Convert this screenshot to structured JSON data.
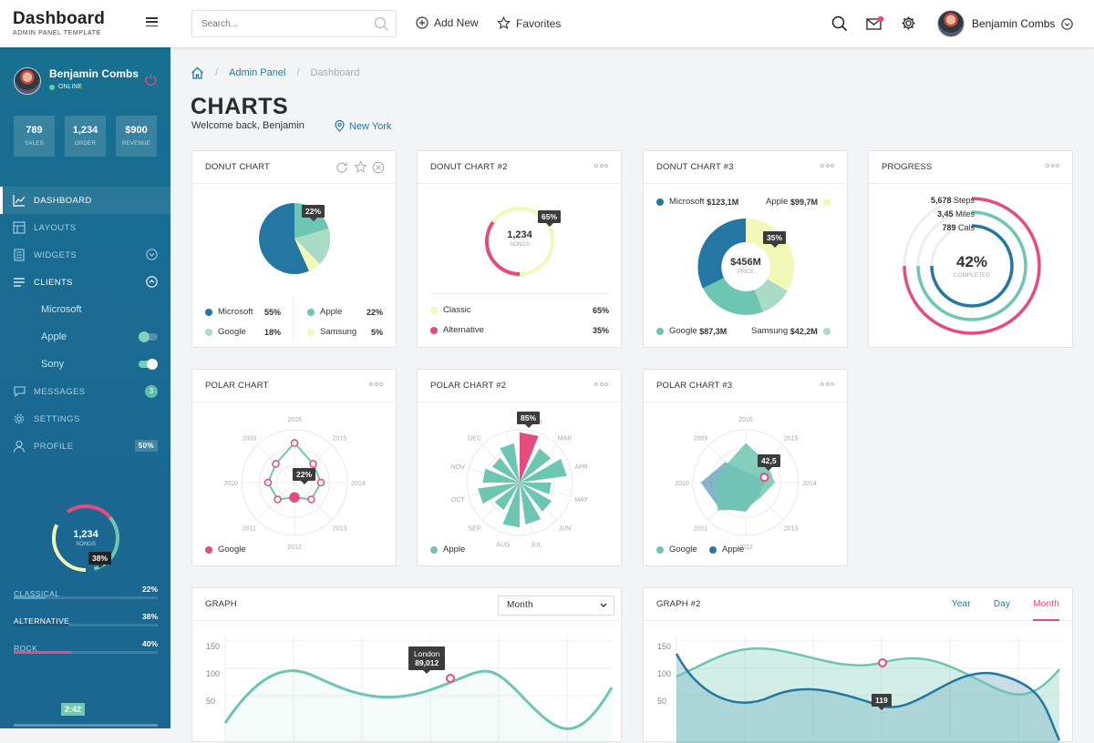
{
  "brand": {
    "title": "Dashboard",
    "subtitle": "ADMIN PANEL TEMPLATE"
  },
  "search": {
    "placeholder": "Search..."
  },
  "topnav": {
    "add_new": "Add New",
    "favorites": "Favorites"
  },
  "user": {
    "name": "Benjamin Combs"
  },
  "sidebar": {
    "user_name": "Benjamin Combs",
    "status": "ONLINE",
    "stats": [
      {
        "value": "789",
        "label": "SALES"
      },
      {
        "value": "1,234",
        "label": "ORDER"
      },
      {
        "value": "$900",
        "label": "REVENUE"
      }
    ],
    "menu": {
      "dashboard": "DASHBOARD",
      "layouts": "LAYOUTS",
      "widgets": "WIDGETS",
      "clients": "CLIENTS",
      "messages": "MESSAGES",
      "messages_count": "3",
      "settings": "SETTINGS",
      "profile": "PROFILE",
      "profile_pct": "50%"
    },
    "clients": {
      "microsoft": "Microsoft",
      "apple": "Apple",
      "sony": "Sony",
      "apple_toggle": false,
      "sony_toggle": true
    },
    "donut": {
      "value": "1,234",
      "label": "SONGS",
      "pct": "38%",
      "fraction": 0.38
    },
    "bars": [
      {
        "label": "CLASSICAL",
        "pct": "22%",
        "value": 22,
        "color": "#4aa8cf"
      },
      {
        "label": "ALTERNATIVE",
        "pct": "38%",
        "value": 38,
        "color": "#1b5a80"
      },
      {
        "label": "ROCK",
        "pct": "40%",
        "value": 40,
        "color": "#e64b7d"
      }
    ],
    "time": "2:42"
  },
  "breadcrumb": {
    "admin": "Admin Panel",
    "current": "Dashboard"
  },
  "page": {
    "title": "CHARTS",
    "welcome": "Welcome back, Benjamin",
    "location": "New York"
  },
  "colors": {
    "teal": "#6dc6b1",
    "blue": "#2377a2",
    "lightgreen": "#a9dcc6",
    "yellow": "#f2f8b8",
    "pink": "#e64b7d"
  },
  "cards": {
    "donut1": {
      "title": "DONUT CHART",
      "tip": "22%",
      "legend": [
        {
          "name": "Microsoft",
          "pct": "55%",
          "color": "#2377a2"
        },
        {
          "name": "Apple",
          "pct": "22%",
          "color": "#6dc6b1"
        },
        {
          "name": "Google",
          "pct": "18%",
          "color": "#a9dcc6"
        },
        {
          "name": "Samsung",
          "pct": "5%",
          "color": "#f2f8b8"
        }
      ]
    },
    "donut2": {
      "title": "DONUT CHART #2",
      "tip": "65%",
      "value": "1,234",
      "label": "SONGS",
      "legend": [
        {
          "name": "Classic",
          "pct": "65%",
          "color": "#f2f8b8"
        },
        {
          "name": "Alternative",
          "pct": "35%",
          "color": "#e64b7d"
        }
      ]
    },
    "donut3": {
      "title": "DONUT CHART #3",
      "tip": "35%",
      "value": "$456M",
      "label": "PRICE",
      "legend": [
        {
          "name": "Microsoft",
          "amount": "$123,1M",
          "color": "#2377a2"
        },
        {
          "name": "Apple",
          "amount": "$99,7M",
          "color": "#f2f8b8"
        },
        {
          "name": "Google",
          "amount": "$87,3M",
          "color": "#6dc6b1"
        },
        {
          "name": "Samsung",
          "amount": "$42,2M",
          "color": "#a9dcc6"
        }
      ]
    },
    "progress": {
      "title": "PROGRESS",
      "pct": "42%",
      "label": "COMPLETED",
      "rows": [
        {
          "value": "5,678",
          "unit": "Steps"
        },
        {
          "value": "3,45",
          "unit": "Miles"
        },
        {
          "value": "789",
          "unit": "Cals"
        }
      ]
    },
    "polar1": {
      "title": "POLAR CHART",
      "tip": "22%",
      "years": [
        "2016",
        "2015",
        "2014",
        "2013",
        "2012",
        "2011",
        "2010",
        "2009"
      ],
      "legend": "Google"
    },
    "polar2": {
      "title": "POLAR CHART #2",
      "tip": "85%",
      "months": [
        "FEB",
        "MAR",
        "APR",
        "MAY",
        "JUN",
        "JUL",
        "AUG",
        "SEP",
        "OCT",
        "NOV",
        "DEC"
      ],
      "legend": "Apple"
    },
    "polar3": {
      "title": "POLAR CHART #3",
      "tip": "42,5",
      "years": [
        "2016",
        "2015",
        "2014",
        "2013",
        "2012",
        "2011",
        "2010",
        "2009"
      ],
      "legend": [
        "Google",
        "Apple"
      ]
    },
    "graph1": {
      "title": "GRAPH",
      "select": "Month",
      "tip_city": "London",
      "tip_value": "89,012",
      "yticks": [
        "150",
        "100",
        "50"
      ]
    },
    "graph2": {
      "title": "GRAPH #2",
      "tabs": [
        "Year",
        "Day",
        "Month"
      ],
      "active_tab": "Month",
      "tip": "119",
      "yticks": [
        "150",
        "100",
        "50"
      ]
    }
  }
}
